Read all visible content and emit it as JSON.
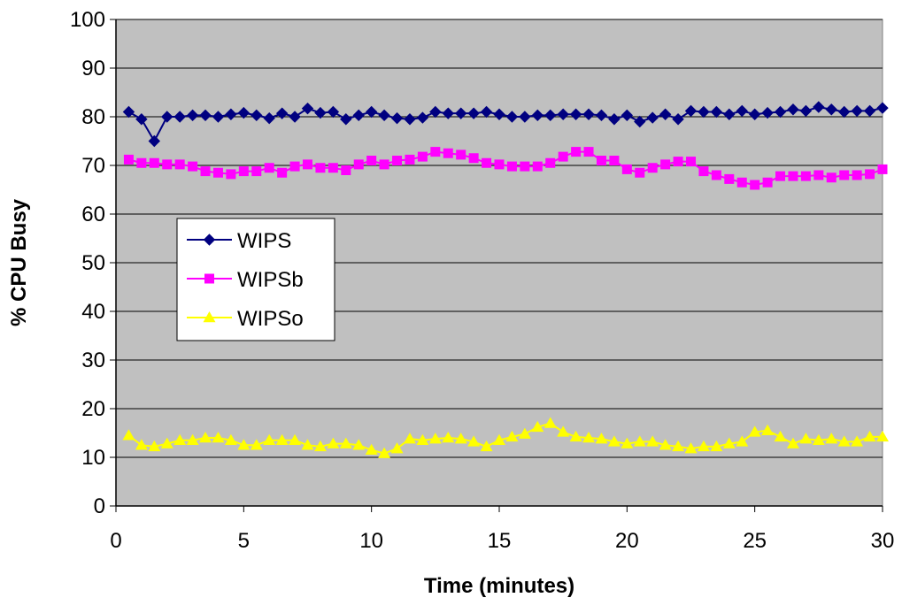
{
  "chart_data": {
    "type": "line",
    "title": "",
    "xlabel": "Time (minutes)",
    "ylabel": "% CPU Busy",
    "xlim": [
      0,
      30
    ],
    "ylim": [
      0,
      100
    ],
    "xticks": [
      0,
      5,
      10,
      15,
      20,
      25,
      30
    ],
    "yticks": [
      0,
      10,
      20,
      30,
      40,
      50,
      60,
      70,
      80,
      90,
      100
    ],
    "grid": "horizontal",
    "plot_background": "#c0c0c0",
    "legend_position": "left-middle",
    "x": [
      0.5,
      1,
      1.5,
      2,
      2.5,
      3,
      3.5,
      4,
      4.5,
      5,
      5.5,
      6,
      6.5,
      7,
      7.5,
      8,
      8.5,
      9,
      9.5,
      10,
      10.5,
      11,
      11.5,
      12,
      12.5,
      13,
      13.5,
      14,
      14.5,
      15,
      15.5,
      16,
      16.5,
      17,
      17.5,
      18,
      18.5,
      19,
      19.5,
      20,
      20.5,
      21,
      21.5,
      22,
      22.5,
      23,
      23.5,
      24,
      24.5,
      25,
      25.5,
      26,
      26.5,
      27,
      27.5,
      28,
      28.5,
      29,
      29.5,
      30
    ],
    "series": [
      {
        "name": "WIPS",
        "color": "#000080",
        "marker": "diamond",
        "values": [
          81,
          79.5,
          75,
          80,
          80,
          80.3,
          80.3,
          80,
          80.5,
          80.8,
          80.3,
          79.7,
          80.7,
          80,
          81.7,
          80.8,
          81,
          79.5,
          80.3,
          81,
          80.3,
          79.7,
          79.5,
          79.8,
          81,
          80.7,
          80.7,
          80.7,
          81,
          80.5,
          80,
          80,
          80.3,
          80.3,
          80.5,
          80.5,
          80.5,
          80.3,
          79.5,
          80.3,
          79,
          79.8,
          80.5,
          79.5,
          81.2,
          81,
          81,
          80.5,
          81.2,
          80.5,
          80.8,
          81,
          81.5,
          81.2,
          82,
          81.5,
          81,
          81.2,
          81.2,
          81.8
        ]
      },
      {
        "name": "WIPSb",
        "color": "#ff00ff",
        "marker": "square",
        "values": [
          71.2,
          70.5,
          70.5,
          70.2,
          70.2,
          69.8,
          68.8,
          68.5,
          68.2,
          68.8,
          68.8,
          69.5,
          68.5,
          69.8,
          70.2,
          69.5,
          69.5,
          69,
          70.2,
          71,
          70.2,
          71,
          71.2,
          71.8,
          72.8,
          72.5,
          72.2,
          71.5,
          70.5,
          70.2,
          69.8,
          69.8,
          69.8,
          70.5,
          71.8,
          72.8,
          72.8,
          71,
          71,
          69.2,
          68.5,
          69.5,
          70.2,
          70.8,
          70.8,
          68.8,
          68,
          67.2,
          66.5,
          66,
          66.5,
          67.8,
          67.8,
          67.8,
          68,
          67.5,
          68,
          68,
          68.2,
          69.2
        ]
      },
      {
        "name": "WIPSo",
        "color": "#ffff00",
        "marker": "triangle",
        "values": [
          14.5,
          12.5,
          12.2,
          12.8,
          13.5,
          13.5,
          14,
          14,
          13.5,
          12.5,
          12.5,
          13.5,
          13.5,
          13.5,
          12.5,
          12.2,
          12.8,
          12.8,
          12.5,
          11.5,
          10.8,
          11.8,
          13.8,
          13.5,
          13.8,
          14,
          13.8,
          13.2,
          12.2,
          13.5,
          14.2,
          14.8,
          16.2,
          17,
          15.2,
          14.2,
          14,
          13.8,
          13.2,
          12.8,
          13.2,
          13.2,
          12.5,
          12.2,
          11.8,
          12.2,
          12.2,
          12.8,
          13.2,
          15.2,
          15.5,
          14.2,
          12.8,
          13.8,
          13.5,
          13.8,
          13.2,
          13.2,
          14.2,
          14.2
        ]
      }
    ]
  }
}
